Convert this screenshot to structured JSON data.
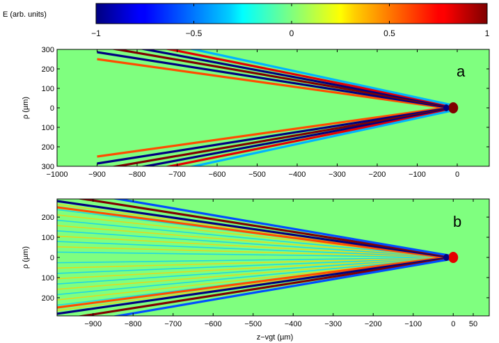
{
  "colorbar": {
    "label": "E (arb. units)",
    "range": [
      -1,
      1
    ],
    "ticks": [
      -1,
      -0.5,
      0,
      0.5,
      1
    ],
    "tick_labels": [
      "−1",
      "−0.5",
      "0",
      "0.5",
      "1"
    ],
    "colormap": "jet"
  },
  "chart_data": [
    {
      "type": "heatmap",
      "panel_label": "a",
      "xlabel": "",
      "ylabel": "ρ (µm)",
      "xlim": [
        -1000,
        80
      ],
      "ylim": [
        -300,
        300
      ],
      "x_ticks": [
        -1000,
        -900,
        -800,
        -700,
        -600,
        -500,
        -400,
        -300,
        -200,
        -100,
        0
      ],
      "x_tick_labels": [
        "−1000",
        "−900",
        "−800",
        "−700",
        "−600",
        "−500",
        "−400",
        "−300",
        "−200",
        "−100",
        "0"
      ],
      "y_ticks": [
        300,
        200,
        100,
        0,
        -100,
        -200,
        -300
      ],
      "y_tick_labels": [
        "300",
        "200",
        "100",
        "0",
        "100",
        "200",
        "300"
      ],
      "pattern": {
        "apex_z": -10,
        "edge_z": -900,
        "edge_rho": 300,
        "fringes": [
          {
            "offset": -14,
            "value": 0.6
          },
          {
            "offset": -4,
            "value": -1
          },
          {
            "offset": 5,
            "value": 1
          },
          {
            "offset": 13,
            "value": -1
          },
          {
            "offset": 21,
            "value": 0.8
          },
          {
            "offset": 30,
            "value": -0.4
          }
        ],
        "apex_blob_value": 1
      }
    },
    {
      "type": "heatmap",
      "panel_label": "b",
      "xlabel": "z−vgt (µm)",
      "ylabel": "ρ (µm)",
      "xlim": [
        -990,
        90
      ],
      "ylim": [
        -290,
        290
      ],
      "x_ticks": [
        -900,
        -800,
        -700,
        -600,
        -500,
        -400,
        -300,
        -200,
        -100,
        0,
        50
      ],
      "x_tick_labels": [
        "−900",
        "−800",
        "−700",
        "−600",
        "−500",
        "−400",
        "−300",
        "−200",
        "−100",
        "0",
        "50"
      ],
      "y_ticks": [
        200,
        100,
        0,
        -100,
        -200
      ],
      "y_tick_labels": [
        "200",
        "100",
        "0",
        "100",
        "200"
      ],
      "pattern": {
        "apex_z": 0,
        "edge_z": -990,
        "edge_rho": 290,
        "fringes": [
          {
            "offset": -12,
            "value": 0.6
          },
          {
            "offset": -3,
            "value": -1
          },
          {
            "offset": 6,
            "value": 1
          },
          {
            "offset": 15,
            "value": -0.6
          }
        ],
        "inner_fringe_count": 10,
        "inner_fringe_amplitude": 0.35,
        "apex_blob_value": 0.8
      }
    }
  ]
}
